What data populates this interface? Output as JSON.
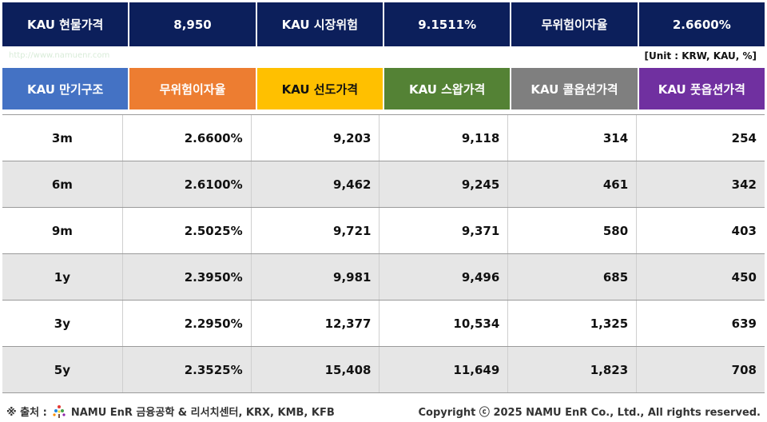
{
  "top": {
    "spot_label": "KAU 현물가격",
    "spot_value": "8,950",
    "risk_label": "KAU 시장위험",
    "risk_value": "9.1511%",
    "rf_label": "무위험이자율",
    "rf_value": "2.6600%"
  },
  "meta": {
    "url": "http://www.namuenr.com",
    "unit": "[Unit : KRW, KAU, %]"
  },
  "headers": [
    "KAU 만기구조",
    "무위험이자율",
    "KAU 선도가격",
    "KAU 스왑가격",
    "KAU 콜옵션가격",
    "KAU 풋옵션가격"
  ],
  "header_colors": [
    "#4472c4",
    "#ed7d31",
    "#ffc000",
    "#548235",
    "#7f7f7f",
    "#7030a0"
  ],
  "rows": [
    [
      "3m",
      "2.6600%",
      "9,203",
      "9,118",
      "314",
      "254"
    ],
    [
      "6m",
      "2.6100%",
      "9,462",
      "9,245",
      "461",
      "342"
    ],
    [
      "9m",
      "2.5025%",
      "9,721",
      "9,371",
      "580",
      "403"
    ],
    [
      "1y",
      "2.3950%",
      "9,981",
      "9,496",
      "685",
      "450"
    ],
    [
      "3y",
      "2.2950%",
      "12,377",
      "10,534",
      "1,325",
      "639"
    ],
    [
      "5y",
      "2.3525%",
      "15,408",
      "11,649",
      "1,823",
      "708"
    ]
  ],
  "footer": {
    "source_prefix": "※ 출처 :",
    "source_text": "NAMU EnR 금융공학 & 리서치센터, KRX, KMB, KFB",
    "logo_icon": "namu-tree-logo-icon",
    "copyright": "Copyright ⓒ 2025 NAMU EnR Co., Ltd., All rights reserved."
  }
}
